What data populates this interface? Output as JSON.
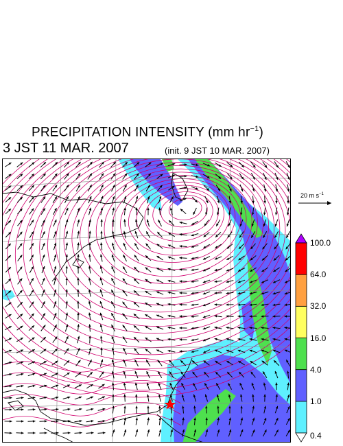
{
  "header": {
    "title": "PRECIPITATION INTENSITY (mm hr",
    "title_exp": "−1",
    "title_close": ")",
    "valid_time": "3 JST 11 MAR. 2007",
    "init_time": "(init. 9 JST 10 MAR. 2007)"
  },
  "reference_vector": {
    "label": "20 m s",
    "label_exp": "−1"
  },
  "colorbar": {
    "levels": [
      "0.4",
      "1.0",
      "4.0",
      "16.0",
      "32.0",
      "64.0",
      "100.0"
    ],
    "colors": [
      "#ffffff",
      "#5ef0ff",
      "#6060ff",
      "#4ee04e",
      "#ffff60",
      "#ffa040",
      "#ff0000",
      "#b000ff"
    ]
  },
  "map": {
    "contour_color": "#d0006e",
    "wind_color": "#000000",
    "marker_color": "#ff0000"
  }
}
